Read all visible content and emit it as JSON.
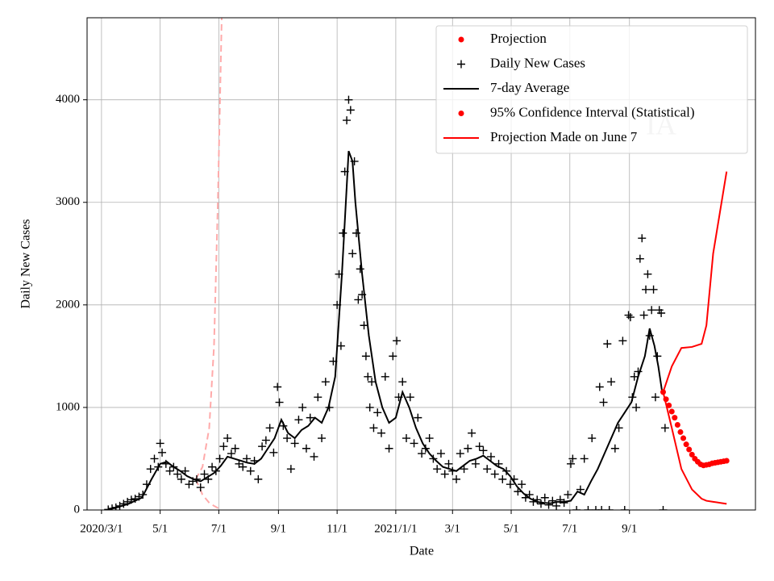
{
  "chart_data": {
    "type": "line",
    "xlabel": "Date",
    "ylabel": "Daily New Cases",
    "annotation": "IA",
    "xlim": [
      "2020-02-15",
      "2022-01-10"
    ],
    "ylim": [
      0,
      4800
    ],
    "yticks": [
      0,
      1000,
      2000,
      3000,
      4000
    ],
    "xticks": [
      {
        "value": "2020-03-01",
        "label": "2020/3/1"
      },
      {
        "value": "2020-05-01",
        "label": "5/1"
      },
      {
        "value": "2020-07-01",
        "label": "7/1"
      },
      {
        "value": "2020-09-01",
        "label": "9/1"
      },
      {
        "value": "2020-11-01",
        "label": "11/1"
      },
      {
        "value": "2021-01-01",
        "label": "2021/1/1"
      },
      {
        "value": "2021-03-01",
        "label": "3/1"
      },
      {
        "value": "2021-05-01",
        "label": "5/1"
      },
      {
        "value": "2021-07-01",
        "label": "7/1"
      },
      {
        "value": "2021-09-01",
        "label": "9/1"
      }
    ],
    "grid": true,
    "legend": "upper right",
    "series": [
      {
        "name": "Projection",
        "style": "dots",
        "color": "#ff0000",
        "x": [
          "2021-10-06",
          "2021-10-09",
          "2021-10-12",
          "2021-10-15",
          "2021-10-18",
          "2021-10-21",
          "2021-10-24",
          "2021-10-27",
          "2021-10-30",
          "2021-11-02",
          "2021-11-05",
          "2021-11-08",
          "2021-11-11",
          "2021-11-14",
          "2021-11-17",
          "2021-11-20",
          "2021-11-23",
          "2021-11-26",
          "2021-11-29",
          "2021-12-02",
          "2021-12-05",
          "2021-12-08",
          "2021-12-11"
        ],
        "values": [
          1150,
          1080,
          1020,
          960,
          900,
          830,
          760,
          700,
          640,
          590,
          540,
          500,
          470,
          445,
          435,
          440,
          445,
          455,
          460,
          465,
          470,
          475,
          480
        ]
      },
      {
        "name": "Daily New Cases",
        "style": "plus",
        "color": "#000000",
        "x": [
          "2020-03-08",
          "2020-03-12",
          "2020-03-16",
          "2020-03-20",
          "2020-03-24",
          "2020-03-28",
          "2020-04-01",
          "2020-04-05",
          "2020-04-09",
          "2020-04-13",
          "2020-04-17",
          "2020-04-21",
          "2020-04-25",
          "2020-04-29",
          "2020-05-01",
          "2020-05-03",
          "2020-05-07",
          "2020-05-11",
          "2020-05-15",
          "2020-05-19",
          "2020-05-23",
          "2020-05-27",
          "2020-05-31",
          "2020-06-04",
          "2020-06-08",
          "2020-06-12",
          "2020-06-16",
          "2020-06-20",
          "2020-06-24",
          "2020-06-28",
          "2020-07-02",
          "2020-07-06",
          "2020-07-10",
          "2020-07-14",
          "2020-07-18",
          "2020-07-22",
          "2020-07-26",
          "2020-07-30",
          "2020-08-03",
          "2020-08-07",
          "2020-08-11",
          "2020-08-15",
          "2020-08-19",
          "2020-08-23",
          "2020-08-27",
          "2020-08-31",
          "2020-09-02",
          "2020-09-06",
          "2020-09-10",
          "2020-09-14",
          "2020-09-18",
          "2020-09-22",
          "2020-09-26",
          "2020-09-30",
          "2020-10-04",
          "2020-10-08",
          "2020-10-12",
          "2020-10-16",
          "2020-10-20",
          "2020-10-24",
          "2020-10-28",
          "2020-11-01",
          "2020-11-03",
          "2020-11-05",
          "2020-11-07",
          "2020-11-09",
          "2020-11-11",
          "2020-11-13",
          "2020-11-15",
          "2020-11-17",
          "2020-11-19",
          "2020-11-21",
          "2020-11-23",
          "2020-11-25",
          "2020-11-27",
          "2020-11-29",
          "2020-12-01",
          "2020-12-03",
          "2020-12-05",
          "2020-12-07",
          "2020-12-09",
          "2020-12-13",
          "2020-12-17",
          "2020-12-21",
          "2020-12-25",
          "2020-12-29",
          "2021-01-02",
          "2021-01-04",
          "2021-01-08",
          "2021-01-12",
          "2021-01-16",
          "2021-01-20",
          "2021-01-24",
          "2021-01-28",
          "2021-02-01",
          "2021-02-05",
          "2021-02-09",
          "2021-02-13",
          "2021-02-17",
          "2021-02-21",
          "2021-02-25",
          "2021-03-01",
          "2021-03-05",
          "2021-03-09",
          "2021-03-13",
          "2021-03-17",
          "2021-03-21",
          "2021-03-25",
          "2021-03-29",
          "2021-04-02",
          "2021-04-06",
          "2021-04-10",
          "2021-04-14",
          "2021-04-18",
          "2021-04-22",
          "2021-04-26",
          "2021-04-30",
          "2021-05-04",
          "2021-05-08",
          "2021-05-12",
          "2021-05-16",
          "2021-05-20",
          "2021-05-24",
          "2021-05-28",
          "2021-06-01",
          "2021-06-05",
          "2021-06-09",
          "2021-06-13",
          "2021-06-17",
          "2021-06-21",
          "2021-06-25",
          "2021-06-29",
          "2021-07-02",
          "2021-07-04",
          "2021-07-08",
          "2021-07-12",
          "2021-07-16",
          "2021-07-20",
          "2021-07-24",
          "2021-07-28",
          "2021-08-01",
          "2021-08-03",
          "2021-08-05",
          "2021-08-09",
          "2021-08-11",
          "2021-08-13",
          "2021-08-17",
          "2021-08-21",
          "2021-08-25",
          "2021-08-27",
          "2021-08-31",
          "2021-09-02",
          "2021-09-04",
          "2021-09-06",
          "2021-09-08",
          "2021-09-10",
          "2021-09-12",
          "2021-09-14",
          "2021-09-16",
          "2021-09-18",
          "2021-09-20",
          "2021-09-22",
          "2021-09-24",
          "2021-09-26",
          "2021-09-28",
          "2021-09-30",
          "2021-10-02",
          "2021-10-04",
          "2021-10-06",
          "2021-10-08"
        ],
        "values": [
          5,
          15,
          25,
          40,
          60,
          80,
          100,
          110,
          130,
          150,
          250,
          400,
          500,
          420,
          650,
          560,
          450,
          380,
          420,
          350,
          300,
          380,
          250,
          280,
          300,
          220,
          350,
          300,
          420,
          380,
          500,
          620,
          700,
          550,
          600,
          450,
          420,
          500,
          380,
          480,
          300,
          620,
          680,
          800,
          560,
          1200,
          1050,
          820,
          700,
          400,
          650,
          880,
          1000,
          600,
          900,
          520,
          1100,
          700,
          1250,
          1000,
          1450,
          2000,
          2300,
          1600,
          2700,
          3300,
          3800,
          4000,
          3900,
          2500,
          3400,
          2700,
          2050,
          2350,
          2100,
          1800,
          1500,
          1300,
          1000,
          1250,
          800,
          950,
          750,
          1300,
          600,
          1500,
          1650,
          1100,
          1250,
          700,
          1100,
          650,
          900,
          550,
          600,
          700,
          500,
          400,
          550,
          350,
          450,
          380,
          300,
          550,
          400,
          600,
          750,
          450,
          620,
          580,
          400,
          520,
          350,
          450,
          300,
          380,
          250,
          300,
          180,
          250,
          120,
          150,
          80,
          100,
          60,
          120,
          50,
          90,
          40,
          100,
          70,
          150,
          450,
          500,
          0,
          200,
          500,
          0,
          700,
          0,
          1200,
          0,
          1050,
          1620,
          0,
          1250,
          600,
          800,
          1650,
          0,
          1900,
          1880,
          1100,
          1300,
          1000,
          1350,
          2450,
          2650,
          1900,
          2150,
          2300,
          1700,
          1950,
          2150,
          1100,
          1500,
          1950,
          1920,
          0,
          800
        ]
      },
      {
        "name": "7-day Average",
        "style": "line",
        "color": "#000000",
        "x": [
          "2020-03-08",
          "2020-03-15",
          "2020-03-29",
          "2020-04-12",
          "2020-04-22",
          "2020-05-01",
          "2020-05-08",
          "2020-05-15",
          "2020-05-22",
          "2020-05-29",
          "2020-06-05",
          "2020-06-12",
          "2020-06-19",
          "2020-06-26",
          "2020-07-03",
          "2020-07-10",
          "2020-07-17",
          "2020-07-24",
          "2020-07-31",
          "2020-08-07",
          "2020-08-14",
          "2020-08-21",
          "2020-08-28",
          "2020-09-04",
          "2020-09-11",
          "2020-09-18",
          "2020-09-25",
          "2020-10-02",
          "2020-10-09",
          "2020-10-16",
          "2020-10-23",
          "2020-10-30",
          "2020-11-06",
          "2020-11-13",
          "2020-11-17",
          "2020-11-20",
          "2020-11-27",
          "2020-12-04",
          "2020-12-11",
          "2020-12-18",
          "2020-12-25",
          "2021-01-01",
          "2021-01-08",
          "2021-01-15",
          "2021-01-22",
          "2021-01-29",
          "2021-02-05",
          "2021-02-12",
          "2021-02-19",
          "2021-02-26",
          "2021-03-05",
          "2021-03-12",
          "2021-03-19",
          "2021-03-26",
          "2021-04-02",
          "2021-04-09",
          "2021-04-16",
          "2021-04-23",
          "2021-04-30",
          "2021-05-07",
          "2021-05-14",
          "2021-05-21",
          "2021-05-28",
          "2021-06-04",
          "2021-06-11",
          "2021-06-18",
          "2021-06-25",
          "2021-07-02",
          "2021-07-09",
          "2021-07-16",
          "2021-07-23",
          "2021-07-30",
          "2021-08-06",
          "2021-08-13",
          "2021-08-20",
          "2021-08-27",
          "2021-09-03",
          "2021-09-10",
          "2021-09-17",
          "2021-09-22",
          "2021-09-27",
          "2021-10-01",
          "2021-10-05"
        ],
        "values": [
          10,
          20,
          60,
          120,
          300,
          450,
          470,
          420,
          380,
          330,
          300,
          280,
          320,
          360,
          430,
          520,
          500,
          480,
          460,
          450,
          500,
          600,
          700,
          880,
          750,
          700,
          780,
          820,
          900,
          850,
          1000,
          1300,
          2300,
          3500,
          3400,
          3000,
          2300,
          1700,
          1250,
          1000,
          850,
          900,
          1150,
          1000,
          800,
          650,
          550,
          480,
          420,
          400,
          380,
          430,
          480,
          500,
          530,
          480,
          430,
          400,
          330,
          230,
          160,
          110,
          80,
          70,
          65,
          80,
          80,
          90,
          180,
          150,
          280,
          400,
          550,
          700,
          850,
          950,
          1050,
          1300,
          1500,
          1770,
          1600,
          1400,
          1150
        ]
      },
      {
        "name": "95% Confidence Interval (Statistical)",
        "style": "band",
        "color": "#ff0000",
        "x": [
          "2021-10-06",
          "2021-10-15",
          "2021-10-25",
          "2021-11-05",
          "2021-11-15",
          "2021-11-20",
          "2021-11-27",
          "2021-12-04",
          "2021-12-11"
        ],
        "upper": [
          1150,
          1400,
          1580,
          1590,
          1620,
          1800,
          2500,
          2900,
          3300
        ],
        "lower": [
          1150,
          800,
          400,
          200,
          110,
          90,
          80,
          70,
          60
        ]
      },
      {
        "name": "Projection Made on June 7",
        "style": "dashed-band",
        "color": "#ffaaaa",
        "x": [
          "2020-06-07",
          "2020-06-14",
          "2020-06-21",
          "2020-06-26",
          "2020-06-30",
          "2020-07-04"
        ],
        "upper": [
          300,
          420,
          800,
          1600,
          3000,
          4800
        ],
        "lower": [
          300,
          150,
          70,
          40,
          20,
          5
        ]
      }
    ]
  }
}
